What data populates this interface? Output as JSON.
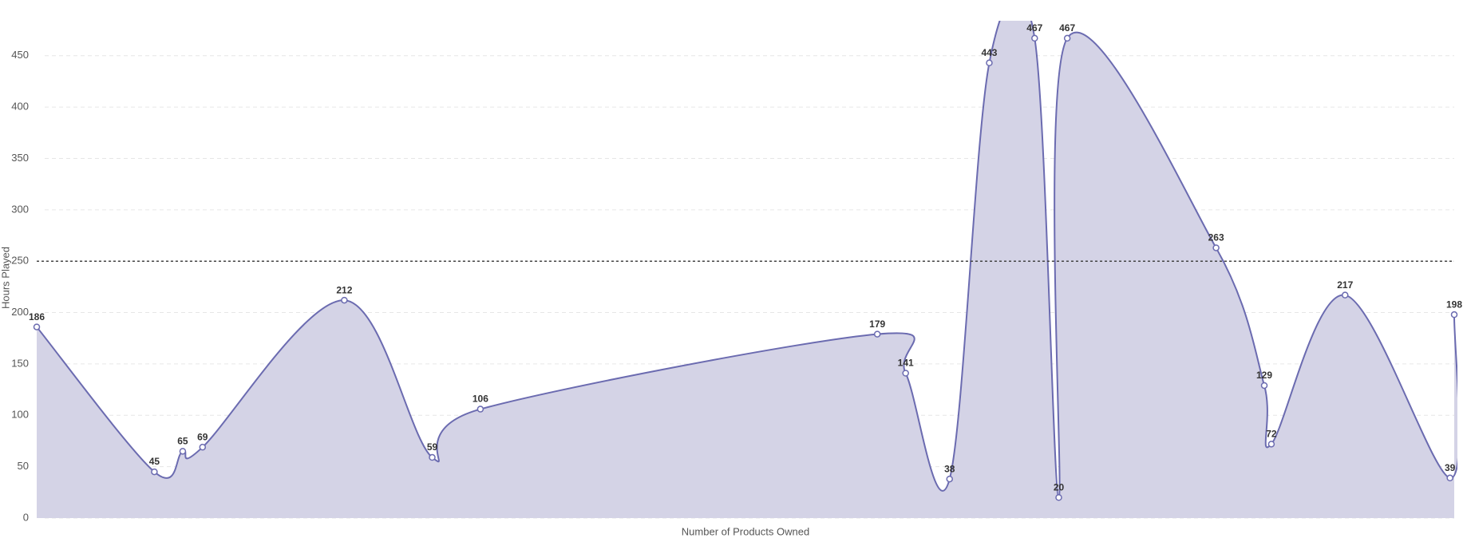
{
  "chart_data": {
    "type": "area",
    "x_label": "Number of Products Owned",
    "y_label": "Hours Played",
    "x": [
      0,
      8.3,
      10.3,
      11.7,
      21.7,
      27.9,
      31.3,
      59.3,
      61.3,
      64.4,
      67.2,
      70.4,
      72.1,
      72.7,
      83.2,
      86.6,
      87.1,
      92.3,
      99.7,
      100
    ],
    "values": [
      186,
      45,
      65,
      69,
      212,
      59,
      106,
      179,
      141,
      38,
      443,
      467,
      20,
      467,
      263,
      129,
      72,
      217,
      39,
      198
    ],
    "xlim": [
      0,
      100
    ],
    "ylim": [
      0,
      484
    ],
    "yticks": [
      0,
      50,
      100,
      150,
      200,
      250,
      300,
      350,
      400,
      450
    ],
    "reference_line": 250,
    "color": "#6b6bb0",
    "fill": "#d4d3e6",
    "grid": true
  }
}
